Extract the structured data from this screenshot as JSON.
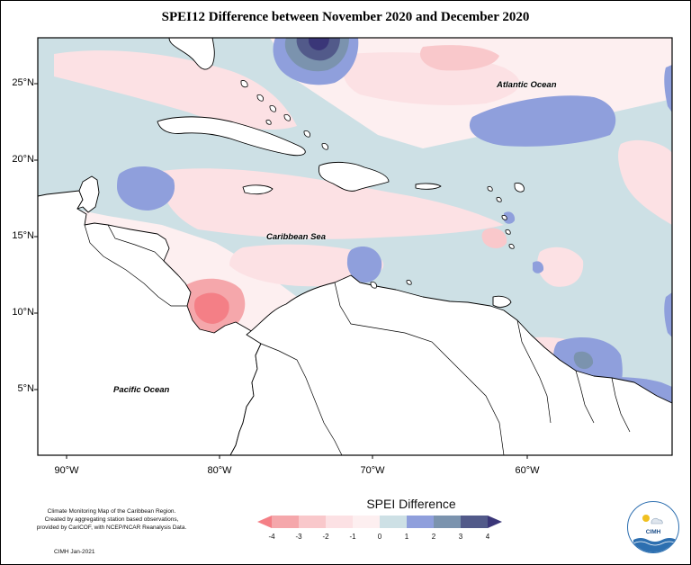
{
  "title": "SPEI12 Difference between November 2020 and December 2020",
  "map": {
    "lat_ticks": [
      "25°N",
      "20°N",
      "15°N",
      "10°N",
      "5°N"
    ],
    "lon_ticks": [
      "90°W",
      "80°W",
      "70°W",
      "60°W"
    ],
    "labels": {
      "atlantic": "Atlantic Ocean",
      "caribbean": "Caribbean Sea",
      "pacific": "Pacific Ocean"
    }
  },
  "legend": {
    "title": "SPEI Difference",
    "ticks": [
      "-4",
      "-3",
      "-2",
      "-1",
      "0",
      "1",
      "2",
      "3",
      "4"
    ],
    "colors": [
      "#f47f86",
      "#f5a7ab",
      "#f9c8cb",
      "#fce1e4",
      "#fdeff0",
      "#cde0e5",
      "#8f9fdc",
      "#7b93ae",
      "#525a8a",
      "#3a3678"
    ]
  },
  "credit": {
    "line1": "Climate Monitoring Map of the Caribbean Region.",
    "line2": "Created by aggregating station based observations,",
    "line3": "provided by CariCOF, with NCEP/NCAR Reanalysis Data.",
    "date": "CIMH Jan-2021"
  },
  "logo": {
    "text": "CIMH"
  }
}
